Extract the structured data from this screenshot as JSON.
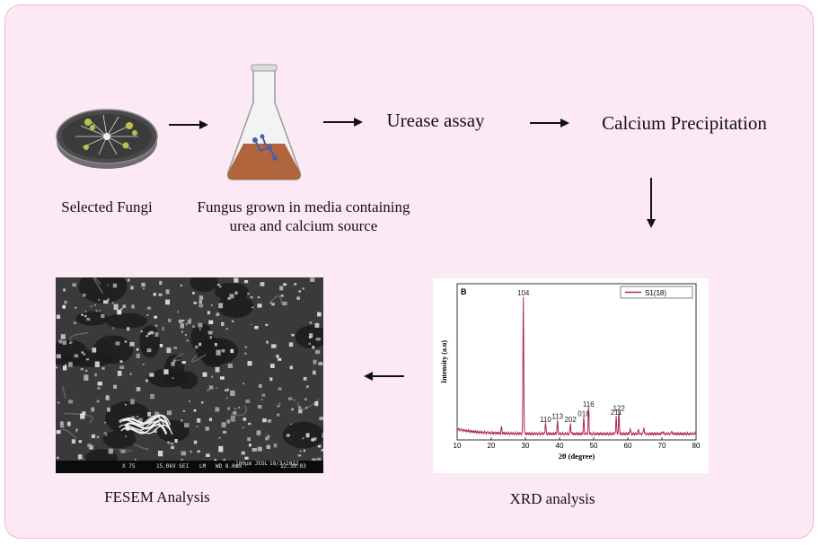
{
  "steps": {
    "selected_fungi": "Selected Fungi",
    "fungus_grown_line1": "Fungus grown in media containing",
    "fungus_grown_line2": "urea and calcium source",
    "urease_assay": "Urease assay",
    "calcium_precipitation": "Calcium Precipitation",
    "xrd_analysis": "XRD analysis",
    "fesem_analysis": "FESEM Analysis"
  },
  "icons": {
    "petri_dish": "petri-dish-icon",
    "flask": "erlenmeyer-flask-icon",
    "arrow": "arrow-icon"
  },
  "colors": {
    "panel_bg": "#fde9f5",
    "panel_border": "#e9b9d6",
    "xrd_line": "#b0245a",
    "flask_liquid": "#b0653c"
  },
  "sem_footer": {
    "magnification": "X 75",
    "voltage": "15.0kV SEI",
    "mode": "LM",
    "wd": "WD 8.0mm",
    "scale": "100μm JEOL",
    "date": "18/3/2022",
    "time": "12:30:03"
  },
  "chart_data": {
    "type": "line",
    "panel_label": "B",
    "xlabel": "2θ (degree)",
    "ylabel": "Intensity (a.u)",
    "xlim": [
      10,
      80
    ],
    "xticks": [
      10,
      20,
      30,
      40,
      50,
      60,
      70,
      80
    ],
    "grid": false,
    "legend": "top-right",
    "series": [
      {
        "name": "S1(18)"
      }
    ],
    "peaks": [
      {
        "x": 23.0,
        "rel": 0.05,
        "label": ""
      },
      {
        "x": 29.4,
        "rel": 1.0,
        "label": "104"
      },
      {
        "x": 35.9,
        "rel": 0.08,
        "label": "110"
      },
      {
        "x": 39.4,
        "rel": 0.1,
        "label": "113"
      },
      {
        "x": 43.2,
        "rel": 0.08,
        "label": "202"
      },
      {
        "x": 47.1,
        "rel": 0.12,
        "label": "018"
      },
      {
        "x": 48.5,
        "rel": 0.19,
        "label": "116"
      },
      {
        "x": 56.6,
        "rel": 0.13,
        "label": "211"
      },
      {
        "x": 57.4,
        "rel": 0.16,
        "label": "122"
      },
      {
        "x": 60.7,
        "rel": 0.04,
        "label": ""
      },
      {
        "x": 63.1,
        "rel": 0.03,
        "label": ""
      },
      {
        "x": 64.7,
        "rel": 0.05,
        "label": ""
      },
      {
        "x": 70.2,
        "rel": 0.02,
        "label": ""
      },
      {
        "x": 72.9,
        "rel": 0.02,
        "label": ""
      }
    ]
  }
}
